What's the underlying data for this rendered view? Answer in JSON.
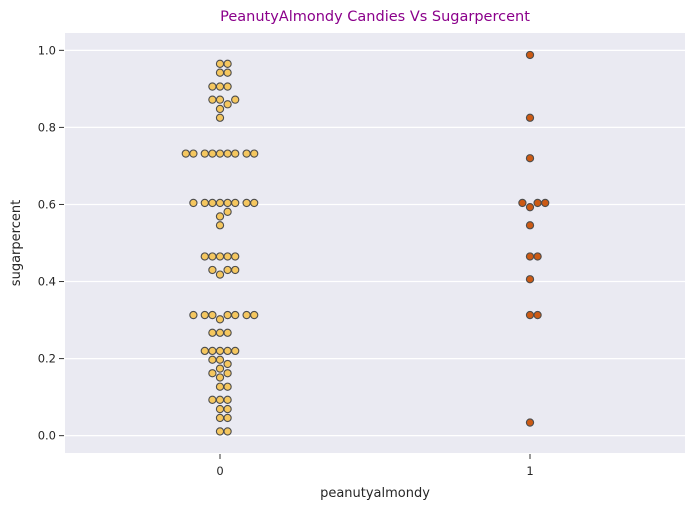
{
  "chart_data": {
    "type": "scatter",
    "subtype": "swarm",
    "title": "PeanutyAlmondy Candies Vs Sugarpercent",
    "xlabel": "peanutyalmondy",
    "ylabel": "sugarpercent",
    "categories": [
      "0",
      "1"
    ],
    "ylim": [
      -0.045,
      1.045
    ],
    "yticks": [
      0.0,
      0.2,
      0.4,
      0.6,
      0.8,
      1.0
    ],
    "ytick_labels": [
      "0.0",
      "0.2",
      "0.4",
      "0.6",
      "0.8",
      "1.0"
    ],
    "grid": true,
    "background": "#eaeaf2",
    "title_color": "#8b008b",
    "marker_edge_color": "#4d4d4d",
    "series": [
      {
        "category": "0",
        "color": "#f5c75f",
        "values": [
          0.965,
          0.965,
          0.942,
          0.942,
          0.906,
          0.906,
          0.906,
          0.872,
          0.872,
          0.872,
          0.86,
          0.848,
          0.825,
          0.732,
          0.732,
          0.732,
          0.732,
          0.732,
          0.732,
          0.732,
          0.732,
          0.732,
          0.604,
          0.604,
          0.604,
          0.604,
          0.604,
          0.604,
          0.604,
          0.604,
          0.581,
          0.569,
          0.546,
          0.465,
          0.465,
          0.465,
          0.465,
          0.465,
          0.43,
          0.43,
          0.43,
          0.418,
          0.313,
          0.313,
          0.313,
          0.313,
          0.313,
          0.313,
          0.313,
          0.302,
          0.267,
          0.267,
          0.267,
          0.22,
          0.22,
          0.22,
          0.22,
          0.22,
          0.197,
          0.197,
          0.186,
          0.174,
          0.162,
          0.162,
          0.151,
          0.127,
          0.127,
          0.093,
          0.093,
          0.093,
          0.069,
          0.069,
          0.046,
          0.046,
          0.011,
          0.011
        ]
      },
      {
        "category": "1",
        "color": "#cc5a14",
        "values": [
          0.988,
          0.825,
          0.72,
          0.604,
          0.604,
          0.604,
          0.593,
          0.546,
          0.465,
          0.465,
          0.406,
          0.313,
          0.313,
          0.034
        ]
      }
    ]
  }
}
